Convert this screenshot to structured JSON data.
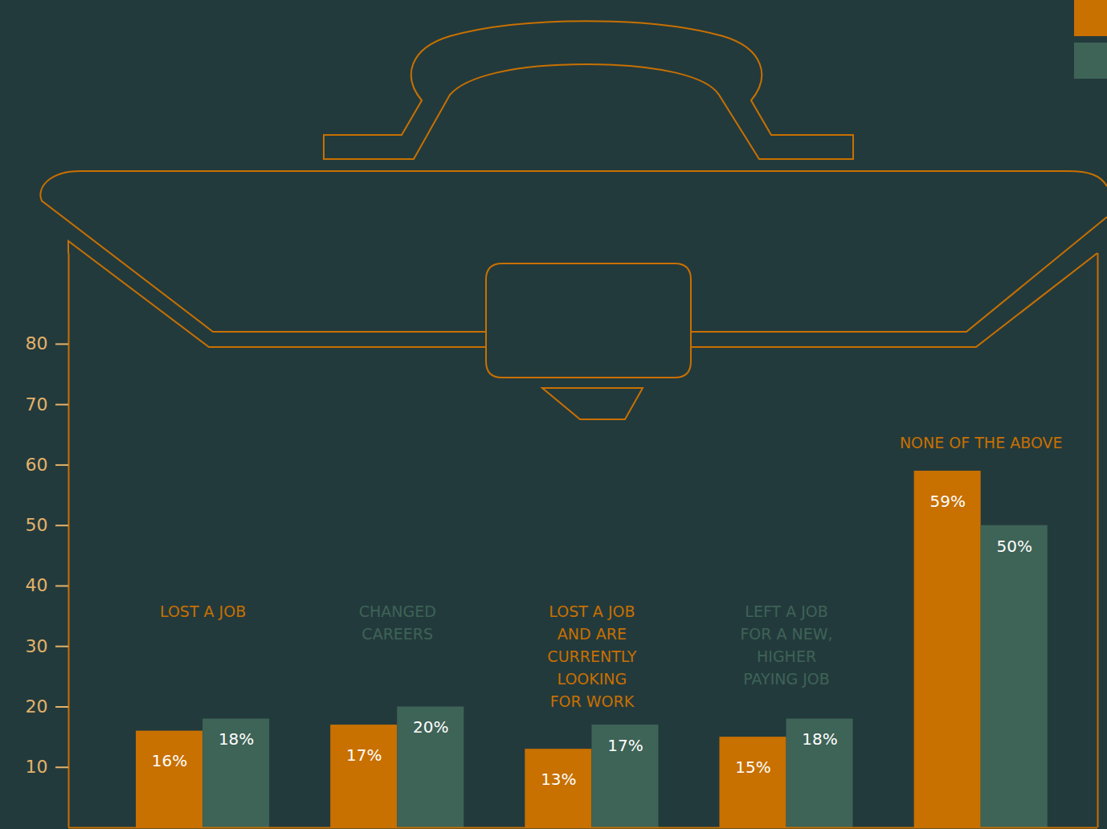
{
  "chart_data": {
    "type": "bar",
    "categories": [
      "LOST A JOB",
      "CHANGED CAREERS",
      "LOST A JOB AND ARE CURRENTLY LOOKING FOR WORK",
      "LEFT A JOB FOR A NEW, HIGHER PAYING JOB",
      "NONE OF THE ABOVE"
    ],
    "series": [
      {
        "color": "#c87000",
        "values": [
          16,
          17,
          13,
          15,
          59
        ],
        "value_labels": [
          "16%",
          "17%",
          "13%",
          "15%",
          "59%"
        ]
      },
      {
        "color": "#3e6357",
        "values": [
          18,
          20,
          17,
          18,
          50
        ],
        "value_labels": [
          "18%",
          "20%",
          "17%",
          "18%",
          "50%"
        ]
      }
    ],
    "ylim": [
      0,
      95
    ],
    "yticks": [
      10,
      20,
      30,
      40,
      50,
      60,
      70,
      80
    ],
    "grid": false,
    "data_labels": true,
    "legend": "top-right"
  }
}
